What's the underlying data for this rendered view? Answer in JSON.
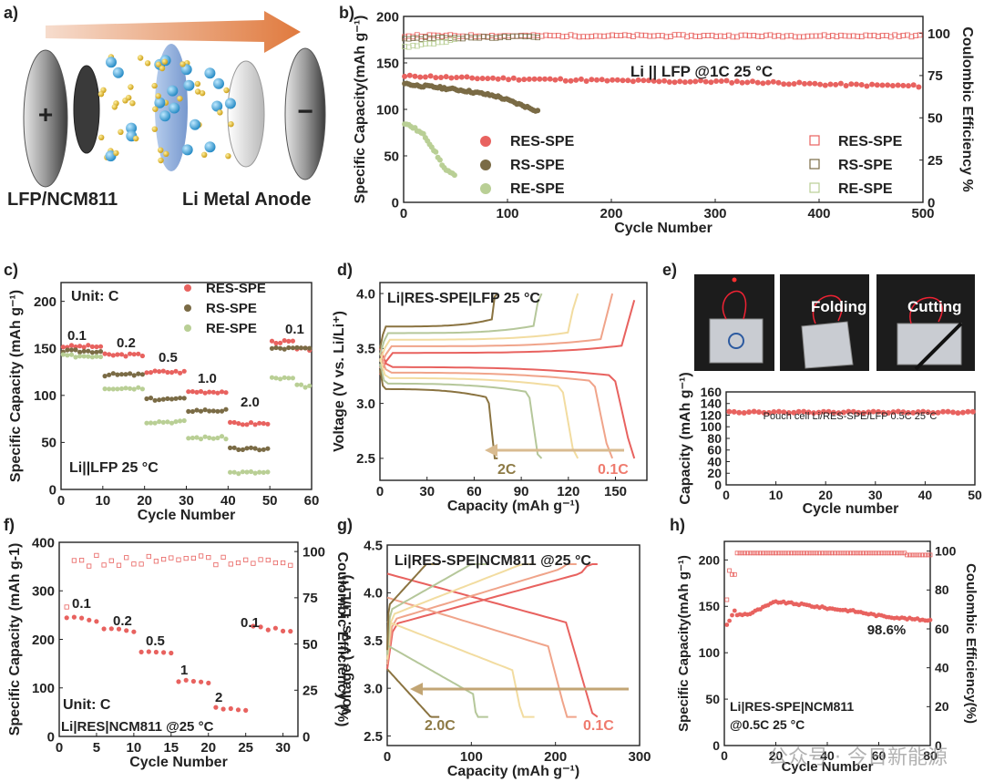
{
  "panel_labels": [
    "a)",
    "b)",
    "c)",
    "d)",
    "e)",
    "f)",
    "g)",
    "h)"
  ],
  "schematic": {
    "plus": "+",
    "minus": "−",
    "cathode_label": "LFP/NCM811",
    "anode_label": "Li Metal Anode"
  },
  "photos": {
    "folding_label": "Folding",
    "cutting_label": "Cutting"
  },
  "watermark": "公众号 · 今日新能源",
  "colors": {
    "res": "#e8625f",
    "rs": "#7a6b45",
    "re": "#b9cf95",
    "arrow_gold": "#8d7a45",
    "arrow_red": "#ef7b6e"
  },
  "chart_data": [
    {
      "id": "b",
      "type": "scatter",
      "title": "Li || LFP @1C 25 °C",
      "xlabel": "Cycle Number",
      "ylabel": "Specific Capacity(mAh g⁻¹)",
      "ylabel2": "Coulombic Efficiency %",
      "xlim": [
        0,
        500
      ],
      "ylim": [
        0,
        200
      ],
      "ylim2": [
        0,
        110
      ],
      "xticks": [
        "0",
        "100",
        "200",
        "300",
        "400",
        "500"
      ],
      "yticks": [
        "0",
        "50",
        "100",
        "150",
        "200"
      ],
      "yticks2": [
        "0",
        "25",
        "50",
        "75",
        "100"
      ],
      "legend": [
        "RES-SPE",
        "RS-SPE",
        "RE-SPE"
      ],
      "legend2": [
        "RES-SPE",
        "RS-SPE",
        "RE-SPE"
      ],
      "series": [
        {
          "name": "RES-SPE",
          "x": [
            1,
            10,
            50,
            100,
            150,
            200,
            250,
            300,
            350,
            400,
            450,
            500
          ],
          "y": [
            135,
            136,
            134,
            133,
            132,
            131,
            130,
            130,
            129,
            127,
            126,
            125
          ]
        },
        {
          "name": "RS-SPE",
          "x": [
            1,
            10,
            30,
            60,
            90,
            110,
            130
          ],
          "y": [
            128,
            126,
            124,
            120,
            114,
            106,
            98
          ]
        },
        {
          "name": "RE-SPE",
          "x": [
            1,
            10,
            20,
            30,
            40,
            50
          ],
          "y": [
            85,
            80,
            72,
            55,
            35,
            28
          ]
        }
      ],
      "ce": [
        {
          "name": "RES-SPE",
          "x": [
            1,
            500
          ],
          "y": [
            98.5,
            98.5
          ]
        },
        {
          "name": "RS-SPE",
          "x": [
            1,
            130
          ],
          "y": [
            97,
            98
          ]
        },
        {
          "name": "RE-SPE",
          "x": [
            1,
            50
          ],
          "y": [
            92,
            96
          ]
        }
      ]
    },
    {
      "id": "c",
      "type": "scatter",
      "annotation": "Unit: C",
      "subtitle": "Li||LFP 25 °C",
      "xlabel": "Cycle Number",
      "ylabel": "Specific Capacity (mAh g⁻¹)",
      "xlim": [
        0,
        60
      ],
      "ylim": [
        0,
        220
      ],
      "xticks": [
        "0",
        "10",
        "20",
        "30",
        "40",
        "50",
        "60"
      ],
      "yticks": [
        "0",
        "50",
        "100",
        "150",
        "200"
      ],
      "rate_labels": [
        "0.1",
        "0.2",
        "0.5",
        "1.0",
        "2.0",
        "0.1"
      ],
      "legend": [
        "RES-SPE",
        "RS-SPE",
        "RE-SPE"
      ],
      "segments": [
        [
          1,
          10
        ],
        [
          11,
          20
        ],
        [
          21,
          30
        ],
        [
          31,
          40
        ],
        [
          41,
          50
        ],
        [
          51,
          60
        ]
      ],
      "series": [
        {
          "name": "RES-SPE",
          "values": [
            152,
            143,
            125,
            104,
            70,
            157
          ]
        },
        {
          "name": "RS-SPE",
          "values": [
            147,
            122,
            96,
            84,
            43,
            150
          ]
        },
        {
          "name": "RE-SPE",
          "values": [
            142,
            108,
            72,
            55,
            18,
            118
          ]
        }
      ]
    },
    {
      "id": "d",
      "type": "line",
      "title": "Li|RES-SPE|LFP 25 °C",
      "xlabel": "Capacity (mAh g⁻¹)",
      "ylabel": "Voltage (V vs. Li/Li⁺)",
      "xlim": [
        0,
        170
      ],
      "ylim": [
        2.3,
        4.1
      ],
      "xticks": [
        "0",
        "30",
        "60",
        "90",
        "120",
        "150"
      ],
      "yticks": [
        "2.5",
        "3.0",
        "3.5",
        "4.0"
      ],
      "arrow_left": "2C",
      "arrow_right": "0.1C",
      "curves": [
        {
          "rate": "0.1C",
          "capacity": 162
        },
        {
          "rate": "0.2C",
          "capacity": 148
        },
        {
          "rate": "0.5C",
          "capacity": 126
        },
        {
          "rate": "1C",
          "capacity": 103
        },
        {
          "rate": "2C",
          "capacity": 75
        }
      ]
    },
    {
      "id": "e",
      "type": "scatter",
      "title": "Pouch cell Li/RES-SPE/LFP 0.5C 25°C",
      "xlabel": "Cycle number",
      "ylabel": "Capacity (mAh g⁻¹)",
      "xlim": [
        0,
        50
      ],
      "ylim": [
        0,
        160
      ],
      "xticks": [
        "0",
        "10",
        "20",
        "30",
        "40",
        "50"
      ],
      "yticks": [
        "0",
        "20",
        "40",
        "60",
        "80",
        "100",
        "120",
        "140",
        "160"
      ],
      "series": [
        {
          "name": "RES-SPE",
          "x": [
            1,
            50
          ],
          "y": [
            125,
            125
          ]
        }
      ]
    },
    {
      "id": "f",
      "type": "scatter",
      "annotation": "Unit:  C",
      "subtitle": "Li|RES|NCM811 @25 °C",
      "xlabel": "Cycle Number",
      "ylabel": "Specific Capacity (mAh g-1)",
      "ylabel2": "Coulombic Efficiency (%)",
      "xlim": [
        0,
        32
      ],
      "ylim": [
        0,
        400
      ],
      "ylim2": [
        0,
        105
      ],
      "xticks": [
        "0",
        "5",
        "10",
        "15",
        "20",
        "25",
        "30"
      ],
      "yticks": [
        "0",
        "100",
        "200",
        "300",
        "400"
      ],
      "yticks2": [
        "0",
        "25",
        "50",
        "75",
        "100"
      ],
      "rate_labels": [
        "0.1",
        "0.2",
        "0.5",
        "1",
        "2",
        "0.1"
      ],
      "segments": [
        [
          1,
          5
        ],
        [
          6,
          10
        ],
        [
          11,
          15
        ],
        [
          16,
          20
        ],
        [
          21,
          25
        ],
        [
          26,
          31
        ]
      ],
      "series": [
        {
          "name": "RES-SPE",
          "values": [
            245,
            222,
            175,
            115,
            60,
            225
          ]
        }
      ]
    },
    {
      "id": "g",
      "type": "line",
      "title": "Li|RES-SPE|NCM811 @25 °C",
      "xlabel": "Capacity (mAh g⁻¹)",
      "ylabel": "Voltage (V vs. Li/Li⁺)",
      "xlim": [
        0,
        300
      ],
      "ylim": [
        2.4,
        4.5
      ],
      "xticks": [
        "0",
        "100",
        "200",
        "300"
      ],
      "yticks": [
        "2.5",
        "3.0",
        "3.5",
        "4.0",
        "4.5"
      ],
      "arrow_left": "2.0C",
      "arrow_right": "0.1C",
      "curves": [
        {
          "rate": "0.1C",
          "capacity": 250
        },
        {
          "rate": "0.2C",
          "capacity": 225
        },
        {
          "rate": "0.5C",
          "capacity": 175
        },
        {
          "rate": "1C",
          "capacity": 120
        },
        {
          "rate": "2C",
          "capacity": 62
        }
      ]
    },
    {
      "id": "h",
      "type": "scatter",
      "title": "Li|RES-SPE|NCM811",
      "subtitle": "@0.5C 25 °C",
      "annotation": "98.6%",
      "xlabel": "Cycle Number",
      "ylabel": "Specific Capacity(mAh g⁻¹)",
      "ylabel2": "Coulombic Efficiency(%)",
      "xlim": [
        0,
        80
      ],
      "ylim": [
        0,
        220
      ],
      "ylim2": [
        0,
        105
      ],
      "xticks": [
        "0",
        "20",
        "40",
        "60",
        "80"
      ],
      "yticks": [
        "0",
        "50",
        "100",
        "150",
        "200"
      ],
      "yticks2": [
        "0",
        "20",
        "40",
        "60",
        "80",
        "100"
      ],
      "series": [
        {
          "name": "RES-SPE",
          "x": [
            1,
            10,
            20,
            30,
            40,
            50,
            60,
            70,
            80
          ],
          "y": [
            140,
            142,
            155,
            152,
            148,
            145,
            140,
            137,
            135
          ]
        }
      ]
    }
  ]
}
